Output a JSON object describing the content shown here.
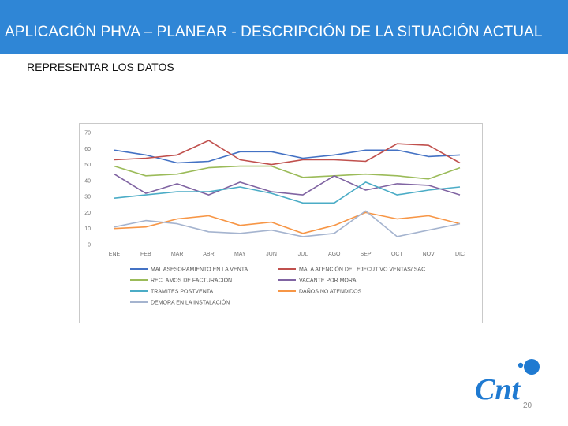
{
  "header": {
    "title": "APLICACIÓN PHVA – PLANEAR - DESCRIPCIÓN DE LA SITUACIÓN ACTUAL"
  },
  "slide": {
    "subtitle": "REPRESENTAR LOS DATOS",
    "page_number": "20",
    "logo_text": "Cnt"
  },
  "colors": {
    "header": "#2f86d6",
    "logo": "#1f7ad1"
  },
  "chart_data": {
    "type": "line",
    "title": "",
    "xlabel": "",
    "ylabel": "",
    "ylim": [
      0,
      70
    ],
    "yticks": [
      0,
      10,
      20,
      30,
      40,
      50,
      60,
      70
    ],
    "categories": [
      "ENE",
      "FEB",
      "MAR",
      "ABR",
      "MAY",
      "JUN",
      "JUL",
      "AGO",
      "SEP",
      "OCT",
      "NOV",
      "DIC"
    ],
    "grid": false,
    "legend_position": "bottom",
    "series": [
      {
        "name": "MAL ASESORAMIENTO EN LA VENTA",
        "color": "#4472c4",
        "values": [
          59,
          56,
          51,
          52,
          58,
          58,
          54,
          56,
          59,
          59,
          55,
          56
        ]
      },
      {
        "name": "MALA ATENCIÓN DEL EJECUTIVO VENTAS/ SAC",
        "color": "#c0504d",
        "values": [
          53,
          54,
          56,
          65,
          53,
          50,
          53,
          53,
          52,
          63,
          62,
          51
        ]
      },
      {
        "name": "RECLAMOS DE FACTURACIÓN",
        "color": "#9bbb59",
        "values": [
          49,
          43,
          44,
          48,
          49,
          49,
          42,
          43,
          44,
          43,
          41,
          48
        ]
      },
      {
        "name": "VACANTE POR MORA",
        "color": "#8064a2",
        "values": [
          44,
          32,
          38,
          31,
          39,
          33,
          31,
          43,
          34,
          38,
          37,
          31
        ]
      },
      {
        "name": "TRAMITES POSTVENTA",
        "color": "#4bacc6",
        "values": [
          29,
          31,
          33,
          33,
          36,
          32,
          26,
          26,
          39,
          31,
          34,
          36
        ]
      },
      {
        "name": "DAÑOS NO ATENDIDOS",
        "color": "#f79646",
        "values": [
          10,
          11,
          16,
          18,
          12,
          14,
          7,
          12,
          20,
          16,
          18,
          13
        ]
      },
      {
        "name": "DEMORA EN LA INSTALACIÓN",
        "color": "#a5b4cf",
        "values": [
          11,
          15,
          13,
          8,
          7,
          9,
          5,
          7,
          21,
          5,
          9,
          13
        ]
      }
    ]
  }
}
